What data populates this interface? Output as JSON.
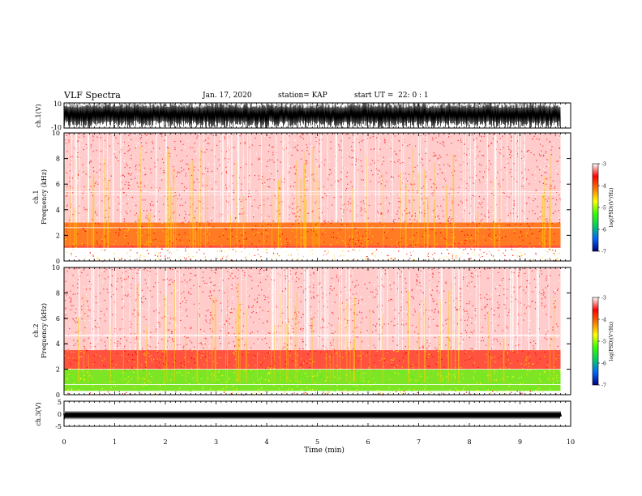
{
  "header": {
    "title": "VLF Spectra",
    "date": "Jan. 17, 2020",
    "station": "station= KAP",
    "start": "start UT =  22: 0 : 1"
  },
  "colorbar": {
    "label": "log(PSD)(V²/Hz)",
    "ticks": [
      "-3",
      "-4",
      "-5",
      "-6",
      "-7"
    ],
    "range": [
      -7,
      -3
    ],
    "stops": [
      "#00007a",
      "#0066ff",
      "#00cc66",
      "#33ff00",
      "#ffff00",
      "#ff7700",
      "#ff0000",
      "#ffffff"
    ]
  },
  "chart_data": [
    {
      "type": "line",
      "ylabel": "ch.1(V)",
      "ylim": [
        -10,
        10
      ],
      "yticks": [
        "10",
        "-10"
      ],
      "description_values": {
        "amplitude_range": [
          -10,
          10
        ],
        "x_range_min": [
          0,
          9.8
        ]
      }
    },
    {
      "type": "heatmap",
      "panel_label": "ch.1",
      "ylabel": "Frequency (kHz)",
      "ylim": [
        0,
        10
      ],
      "yticks": [
        "0",
        "2",
        "4",
        "6",
        "8",
        "10"
      ],
      "band_strong_khz": [
        1,
        3
      ],
      "band_weak_khz": [
        3,
        10
      ]
    },
    {
      "type": "heatmap",
      "panel_label": "ch.2",
      "ylabel": "Frequency (kHz)",
      "ylim": [
        0,
        10
      ],
      "yticks": [
        "0",
        "2",
        "4",
        "6",
        "8",
        "10"
      ],
      "band_green_khz": [
        0.3,
        2
      ],
      "band_strong_khz": [
        2,
        3.5
      ],
      "band_weak_khz": [
        3.5,
        10
      ]
    },
    {
      "type": "line",
      "ylabel": "ch.3(V)",
      "ylim": [
        -5,
        5
      ],
      "yticks": [
        "5",
        "0",
        "-5"
      ],
      "trace_level_v": -0.5
    }
  ],
  "xaxis": {
    "label": "Time (min)",
    "ticks": [
      "0",
      "1",
      "2",
      "3",
      "4",
      "5",
      "6",
      "7",
      "8",
      "9",
      "10"
    ],
    "xlim": [
      0,
      10
    ],
    "data_end": 9.8
  }
}
